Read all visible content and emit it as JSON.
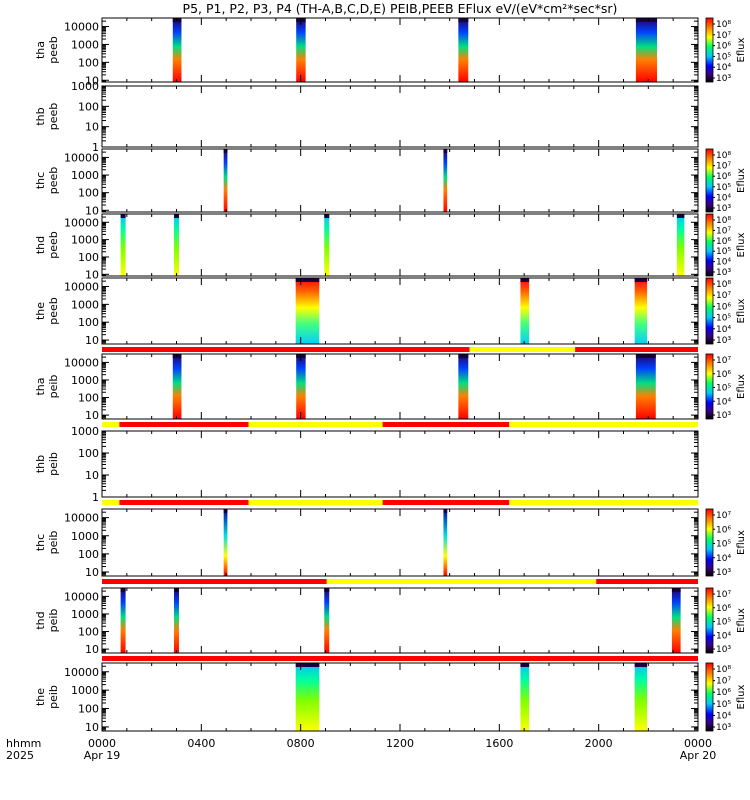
{
  "title": "P5, P1, P2, P3, P4 (TH-A,B,C,D,E) PEIB,PEEB EFlux eV/(eV*cm²*sec*sr)",
  "time_axis": {
    "row1_label": "hhmm",
    "row2_label": "2025",
    "ticks": [
      {
        "t": 0,
        "label": "0000",
        "date": "Apr 19"
      },
      {
        "t": 4,
        "label": "0400",
        "date": ""
      },
      {
        "t": 8,
        "label": "0800",
        "date": ""
      },
      {
        "t": 12,
        "label": "1200",
        "date": ""
      },
      {
        "t": 16,
        "label": "1600",
        "date": ""
      },
      {
        "t": 20,
        "label": "2000",
        "date": ""
      },
      {
        "t": 24,
        "label": "0000",
        "date": "Apr 20"
      }
    ],
    "range_hours": [
      0,
      24
    ]
  },
  "colors": {
    "red": "#ff0000",
    "yellow": "#ffff00",
    "trace": "#000000"
  },
  "chart_data": [
    {
      "type": "heatmap",
      "probe": "tha",
      "instrument": "peeb",
      "ylabel": [
        "tha",
        "peeb"
      ],
      "yscale": "log",
      "ylim": [
        8,
        30000
      ],
      "yticks": [
        {
          "v": 10,
          "l": "10"
        },
        {
          "v": 100,
          "l": "100"
        },
        {
          "v": 1000,
          "l": "1000"
        },
        {
          "v": 10000,
          "l": "10000"
        }
      ],
      "colorbar": {
        "label": "Eflux",
        "ticks": [
          "10⁸",
          "10⁷",
          "10⁶",
          "10⁵",
          "10⁴",
          "10³"
        ]
      },
      "intervals": [
        [
          2.85,
          3.2
        ],
        [
          7.82,
          8.2
        ],
        [
          14.35,
          14.75
        ],
        [
          21.5,
          22.35
        ]
      ],
      "mode_bar": null
    },
    {
      "type": "heatmap",
      "probe": "thb",
      "instrument": "peeb",
      "ylabel": [
        "thb",
        "peeb"
      ],
      "yscale": "log",
      "ylim": [
        1,
        1000
      ],
      "yticks": [
        {
          "v": 1,
          "l": "1"
        },
        {
          "v": 10,
          "l": "10"
        },
        {
          "v": 100,
          "l": "100"
        },
        {
          "v": 1000,
          "l": "1000"
        }
      ],
      "colorbar": null,
      "intervals": [],
      "mode_bar": null
    },
    {
      "type": "heatmap",
      "probe": "thc",
      "instrument": "peeb",
      "ylabel": [
        "thc",
        "peeb"
      ],
      "yscale": "log",
      "ylim": [
        8,
        30000
      ],
      "yticks": [
        {
          "v": 10,
          "l": "10"
        },
        {
          "v": 100,
          "l": "100"
        },
        {
          "v": 1000,
          "l": "1000"
        },
        {
          "v": 10000,
          "l": "10000"
        }
      ],
      "colorbar": {
        "label": "Eflux",
        "ticks": [
          "10⁸",
          "10⁷",
          "10⁶",
          "10⁵",
          "10⁴",
          "10³"
        ]
      },
      "intervals": [
        [
          4.9,
          5.05
        ],
        [
          13.75,
          13.9
        ]
      ],
      "mode_bar": null
    },
    {
      "type": "heatmap",
      "probe": "thd",
      "instrument": "peeb",
      "ylabel": [
        "thd",
        "peeb"
      ],
      "yscale": "log",
      "ylim": [
        8,
        30000
      ],
      "yticks": [
        {
          "v": 10,
          "l": "10"
        },
        {
          "v": 100,
          "l": "100"
        },
        {
          "v": 1000,
          "l": "1000"
        },
        {
          "v": 10000,
          "l": "10000"
        }
      ],
      "colorbar": {
        "label": "Eflux",
        "ticks": [
          "10⁸",
          "10⁷",
          "10⁶",
          "10⁵",
          "10⁴",
          "10³"
        ]
      },
      "intervals": [
        [
          0.75,
          0.95
        ],
        [
          2.9,
          3.1
        ],
        [
          8.95,
          9.15
        ],
        [
          23.15,
          23.45
        ]
      ],
      "mode_bar": null
    },
    {
      "type": "heatmap",
      "probe": "the",
      "instrument": "peeb",
      "ylabel": [
        "the",
        "peeb"
      ],
      "yscale": "log",
      "ylim": [
        6,
        30000
      ],
      "yticks": [
        {
          "v": 10,
          "l": "10"
        },
        {
          "v": 100,
          "l": "100"
        },
        {
          "v": 1000,
          "l": "1000"
        },
        {
          "v": 10000,
          "l": "10000"
        }
      ],
      "colorbar": {
        "label": "Eflux",
        "ticks": [
          "10⁸",
          "10⁷",
          "10⁶",
          "10⁵",
          "10⁴",
          "10³"
        ]
      },
      "intervals": [
        [
          7.8,
          8.75
        ],
        [
          16.85,
          17.2
        ],
        [
          21.45,
          21.95
        ]
      ],
      "mode_bar": [
        {
          "from": 0,
          "to": 14.8,
          "color": "red"
        },
        {
          "from": 14.8,
          "to": 19.05,
          "color": "yellow"
        },
        {
          "from": 19.05,
          "to": 24,
          "color": "red"
        }
      ]
    },
    {
      "type": "heatmap",
      "probe": "tha",
      "instrument": "peib",
      "ylabel": [
        "tha",
        "peib"
      ],
      "yscale": "log",
      "ylim": [
        6,
        30000
      ],
      "yticks": [
        {
          "v": 10,
          "l": "10"
        },
        {
          "v": 100,
          "l": "100"
        },
        {
          "v": 1000,
          "l": "1000"
        },
        {
          "v": 10000,
          "l": "10000"
        }
      ],
      "colorbar": {
        "label": "Eflux",
        "ticks": [
          "10⁷",
          "10⁶",
          "10⁵",
          "10⁴",
          "10³"
        ]
      },
      "intervals": [
        [
          2.85,
          3.2
        ],
        [
          7.82,
          8.2
        ],
        [
          14.35,
          14.75
        ],
        [
          21.5,
          22.3
        ]
      ],
      "mode_bar": [
        {
          "from": 0,
          "to": 0.7,
          "color": "yellow"
        },
        {
          "from": 0.7,
          "to": 5.9,
          "color": "red"
        },
        {
          "from": 5.9,
          "to": 11.3,
          "color": "yellow"
        },
        {
          "from": 11.3,
          "to": 16.4,
          "color": "red"
        },
        {
          "from": 16.4,
          "to": 24,
          "color": "yellow"
        }
      ]
    },
    {
      "type": "heatmap",
      "probe": "thb",
      "instrument": "peib",
      "ylabel": [
        "thb",
        "peib"
      ],
      "yscale": "log",
      "ylim": [
        1,
        1000
      ],
      "yticks": [
        {
          "v": 1,
          "l": "1"
        },
        {
          "v": 10,
          "l": "10"
        },
        {
          "v": 100,
          "l": "100"
        },
        {
          "v": 1000,
          "l": "1000"
        }
      ],
      "colorbar": null,
      "intervals": [],
      "mode_bar": [
        {
          "from": 0,
          "to": 0.7,
          "color": "yellow"
        },
        {
          "from": 0.7,
          "to": 5.9,
          "color": "red"
        },
        {
          "from": 5.9,
          "to": 11.3,
          "color": "yellow"
        },
        {
          "from": 11.3,
          "to": 16.4,
          "color": "red"
        },
        {
          "from": 16.4,
          "to": 24,
          "color": "yellow"
        }
      ]
    },
    {
      "type": "heatmap",
      "probe": "thc",
      "instrument": "peib",
      "ylabel": [
        "thc",
        "peib"
      ],
      "yscale": "log",
      "ylim": [
        6,
        30000
      ],
      "yticks": [
        {
          "v": 10,
          "l": "10"
        },
        {
          "v": 100,
          "l": "100"
        },
        {
          "v": 1000,
          "l": "1000"
        },
        {
          "v": 10000,
          "l": "10000"
        }
      ],
      "colorbar": {
        "label": "Eflux",
        "ticks": [
          "10⁷",
          "10⁶",
          "10⁵",
          "10⁴",
          "10³"
        ]
      },
      "intervals": [
        [
          4.9,
          5.05
        ],
        [
          13.75,
          13.9
        ]
      ],
      "mode_bar": [
        {
          "from": 0,
          "to": 9.05,
          "color": "red"
        },
        {
          "from": 9.05,
          "to": 19.9,
          "color": "yellow"
        },
        {
          "from": 19.9,
          "to": 24,
          "color": "red"
        }
      ]
    },
    {
      "type": "heatmap",
      "probe": "thd",
      "instrument": "peib",
      "ylabel": [
        "thd",
        "peib"
      ],
      "yscale": "log",
      "ylim": [
        6,
        30000
      ],
      "yticks": [
        {
          "v": 10,
          "l": "10"
        },
        {
          "v": 100,
          "l": "100"
        },
        {
          "v": 1000,
          "l": "1000"
        },
        {
          "v": 10000,
          "l": "10000"
        }
      ],
      "colorbar": {
        "label": "Eflux",
        "ticks": [
          "10⁷",
          "10⁶",
          "10⁵",
          "10⁴",
          "10³"
        ]
      },
      "intervals": [
        [
          0.75,
          0.95
        ],
        [
          2.9,
          3.1
        ],
        [
          8.95,
          9.15
        ],
        [
          22.95,
          23.3
        ]
      ],
      "mode_bar": [
        {
          "from": 0,
          "to": 24,
          "color": "red"
        }
      ]
    },
    {
      "type": "heatmap",
      "probe": "the",
      "instrument": "peib",
      "ylabel": [
        "the",
        "peib"
      ],
      "yscale": "log",
      "ylim": [
        6,
        30000
      ],
      "yticks": [
        {
          "v": 10,
          "l": "10"
        },
        {
          "v": 100,
          "l": "100"
        },
        {
          "v": 1000,
          "l": "1000"
        },
        {
          "v": 10000,
          "l": "10000"
        }
      ],
      "colorbar": {
        "label": "Eflux",
        "ticks": [
          "10⁸",
          "10⁷",
          "10⁶",
          "10⁵",
          "10⁴",
          "10³"
        ]
      },
      "intervals": [
        [
          7.8,
          8.75
        ],
        [
          16.85,
          17.2
        ],
        [
          21.45,
          21.95
        ]
      ],
      "mode_bar": null
    }
  ]
}
